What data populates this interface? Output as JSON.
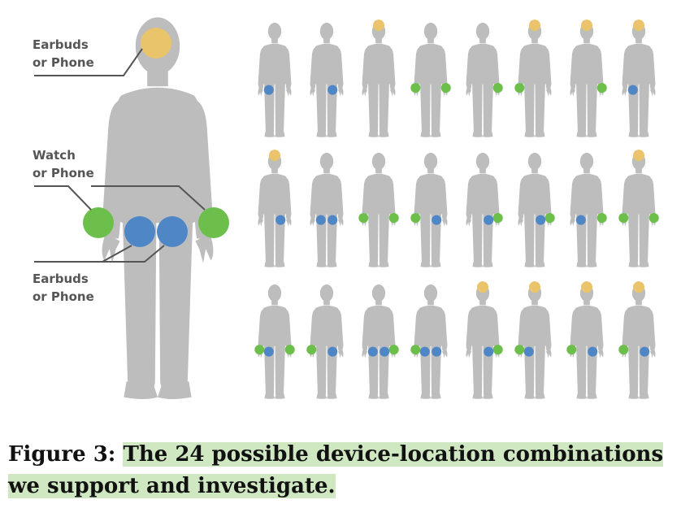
{
  "labels": {
    "head": [
      "Earbuds",
      "or Phone"
    ],
    "wrist": [
      "Watch",
      "or Phone"
    ],
    "hip": [
      "Earbuds",
      "or Phone"
    ]
  },
  "caption": {
    "prefix": "Figure 3:",
    "text": "The 24 possible device-location combinations we support and investigate."
  },
  "colors": {
    "body": "#bdbdbd",
    "head_device": "#e9c46a",
    "wrist_device": "#6cbf4b",
    "hip_device": "#4f86c6",
    "caption_highlight": "#cfe8c2"
  },
  "combinations": [
    {
      "head": false,
      "wrist": "none",
      "hip": "left"
    },
    {
      "head": false,
      "wrist": "none",
      "hip": "right"
    },
    {
      "head": true,
      "wrist": "none",
      "hip": "none"
    },
    {
      "head": false,
      "wrist": "both",
      "hip": "none"
    },
    {
      "head": false,
      "wrist": "right",
      "hip": "none"
    },
    {
      "head": true,
      "wrist": "left",
      "hip": "none"
    },
    {
      "head": true,
      "wrist": "right",
      "hip": "none"
    },
    {
      "head": true,
      "wrist": "none",
      "hip": "left"
    },
    {
      "head": true,
      "wrist": "none",
      "hip": "right"
    },
    {
      "head": false,
      "wrist": "none",
      "hip": "both"
    },
    {
      "head": false,
      "wrist": "both",
      "hip": "none"
    },
    {
      "head": false,
      "wrist": "left",
      "hip": "right"
    },
    {
      "head": false,
      "wrist": "right",
      "hip": "right"
    },
    {
      "head": false,
      "wrist": "right",
      "hip": "right"
    },
    {
      "head": false,
      "wrist": "right",
      "hip": "left"
    },
    {
      "head": true,
      "wrist": "both",
      "hip": "none"
    },
    {
      "head": false,
      "wrist": "both",
      "hip": "left"
    },
    {
      "head": false,
      "wrist": "left",
      "hip": "right"
    },
    {
      "head": false,
      "wrist": "right",
      "hip": "both"
    },
    {
      "head": false,
      "wrist": "left",
      "hip": "both"
    },
    {
      "head": true,
      "wrist": "right",
      "hip": "right"
    },
    {
      "head": true,
      "wrist": "left",
      "hip": "left"
    },
    {
      "head": true,
      "wrist": "left",
      "hip": "right"
    },
    {
      "head": true,
      "wrist": "left",
      "hip": "right"
    }
  ]
}
